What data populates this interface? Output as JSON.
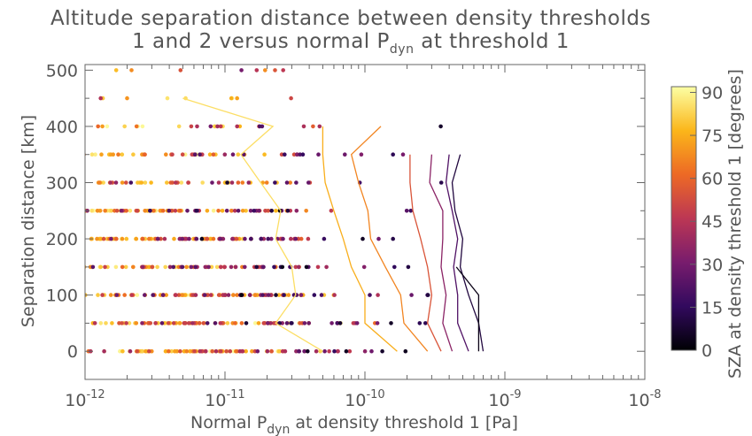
{
  "chart_data": {
    "type": "scatter",
    "title_line1": "Altitude separation distance between density thresholds",
    "title_line2_prefix": "1 and 2 versus normal P",
    "title_line2_sub": "dyn",
    "title_line2_suffix": " at threshold 1",
    "xlabel_prefix": "Normal P",
    "xlabel_sub": "dyn",
    "xlabel_suffix": " at density threshold 1 [Pa]",
    "ylabel": "Separation distance [km]",
    "x_scale": "log",
    "xlim": [
      1e-12,
      1e-08
    ],
    "ylim": [
      -50,
      510
    ],
    "x_tick_labels": [
      {
        "base": "10",
        "exp": "-12"
      },
      {
        "base": "10",
        "exp": "-11"
      },
      {
        "base": "10",
        "exp": "-10"
      },
      {
        "base": "10",
        "exp": "-9"
      },
      {
        "base": "10",
        "exp": "-8"
      }
    ],
    "y_ticks": [
      0,
      100,
      200,
      300,
      400,
      500
    ],
    "colorbar": {
      "label": "SZA at density threshold 1 [degrees]",
      "range": [
        0,
        92
      ],
      "ticks": [
        0,
        15,
        30,
        45,
        60,
        75,
        90
      ],
      "colormap": "inferno",
      "stops": [
        "#000004",
        "#320a5e",
        "#781c6d",
        "#bc3754",
        "#ed6925",
        "#fbb61a",
        "#fcffa4"
      ]
    },
    "altitude_levels": [
      0,
      50,
      100,
      150,
      200,
      250,
      300,
      350,
      400,
      450,
      500
    ],
    "median_lines": [
      {
        "sza": 85,
        "points": [
          [
            5e-12,
            450
          ],
          [
            2.2e-11,
            400
          ],
          [
            1.3e-11,
            350
          ],
          [
            1.8e-11,
            300
          ],
          [
            2.5e-11,
            250
          ],
          [
            2.3e-11,
            200
          ],
          [
            3e-11,
            150
          ],
          [
            3.2e-11,
            100
          ],
          [
            2.3e-11,
            50
          ],
          [
            5e-11,
            0
          ]
        ]
      },
      {
        "sza": 75,
        "points": [
          [
            5e-11,
            400
          ],
          [
            5e-11,
            350
          ],
          [
            5.2e-11,
            300
          ],
          [
            6e-11,
            250
          ],
          [
            7e-11,
            200
          ],
          [
            8e-11,
            150
          ],
          [
            1e-10,
            100
          ],
          [
            1e-10,
            50
          ],
          [
            1.7e-10,
            0
          ]
        ]
      },
      {
        "sza": 67,
        "points": [
          [
            1.3e-10,
            400
          ],
          [
            8e-11,
            350
          ],
          [
            9e-11,
            300
          ],
          [
            1.05e-10,
            250
          ],
          [
            1.1e-10,
            200
          ],
          [
            1.4e-10,
            150
          ],
          [
            1.8e-10,
            100
          ],
          [
            1.9e-10,
            50
          ],
          [
            2.8e-10,
            0
          ]
        ]
      },
      {
        "sza": 55,
        "points": [
          [
            2.1e-10,
            350
          ],
          [
            2.1e-10,
            300
          ],
          [
            2.2e-10,
            250
          ],
          [
            2.5e-10,
            200
          ],
          [
            2.8e-10,
            150
          ],
          [
            3e-10,
            100
          ],
          [
            2.8e-10,
            50
          ],
          [
            3.5e-10,
            0
          ]
        ]
      },
      {
        "sza": 35,
        "points": [
          [
            3e-10,
            350
          ],
          [
            2.9e-10,
            300
          ],
          [
            3.6e-10,
            250
          ],
          [
            3.6e-10,
            200
          ],
          [
            3.5e-10,
            150
          ],
          [
            3.8e-10,
            100
          ],
          [
            3.6e-10,
            50
          ],
          [
            4.2e-10,
            0
          ]
        ]
      },
      {
        "sza": 22,
        "points": [
          [
            4e-10,
            350
          ],
          [
            3.8e-10,
            300
          ],
          [
            4.2e-10,
            250
          ],
          [
            4.6e-10,
            200
          ],
          [
            4.3e-10,
            150
          ],
          [
            4.6e-10,
            100
          ],
          [
            4.6e-10,
            50
          ],
          [
            5.5e-10,
            0
          ]
        ]
      },
      {
        "sza": 10,
        "points": [
          [
            4.8e-10,
            350
          ],
          [
            4.2e-10,
            300
          ],
          [
            4.4e-10,
            250
          ],
          [
            5e-10,
            200
          ],
          [
            4.8e-10,
            150
          ],
          [
            5.5e-10,
            100
          ],
          [
            6.5e-10,
            50
          ],
          [
            7e-10,
            0
          ]
        ]
      },
      {
        "sza": 3,
        "points": [
          [
            4.5e-10,
            150
          ],
          [
            6.5e-10,
            100
          ],
          [
            6.5e-10,
            50
          ],
          [
            6.5e-10,
            0
          ]
        ]
      }
    ]
  }
}
